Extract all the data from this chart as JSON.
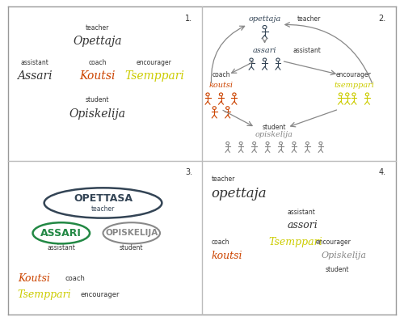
{
  "bg_color": "#ffffff",
  "border_color": "#999999",
  "quadrant_line_color": "#bbbbbb",
  "q1_number": "1.",
  "q2_number": "2.",
  "q3_number": "3.",
  "q4_number": "4.",
  "coach_color": "#cc4400",
  "encourager_color": "#cccc00",
  "assistant_color": "#228844",
  "teacher_color": "#334455",
  "student_color": "#888888",
  "dark_color": "#333333",
  "arrow_color": "#888888"
}
